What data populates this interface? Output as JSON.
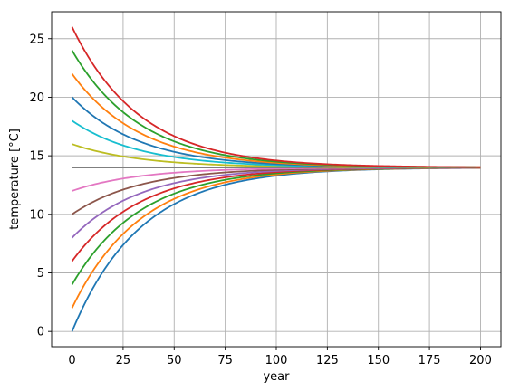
{
  "chart_data": {
    "type": "line",
    "title": "",
    "xlabel": "year",
    "ylabel": "temperature [°C]",
    "xlim": [
      -10,
      210
    ],
    "ylim": [
      -1.3,
      27.3
    ],
    "xticks": [
      0,
      25,
      50,
      75,
      100,
      125,
      150,
      175,
      200
    ],
    "yticks": [
      0,
      5,
      10,
      15,
      20,
      25
    ],
    "grid": true,
    "legend": "none",
    "model": {
      "equilibrium": 14,
      "decay_rate_per_year": 0.03
    },
    "x": [
      0,
      5,
      10,
      15,
      20,
      25,
      30,
      35,
      40,
      45,
      50,
      55,
      60,
      65,
      70,
      75,
      80,
      85,
      90,
      95,
      100,
      105,
      110,
      115,
      120,
      125,
      130,
      135,
      140,
      145,
      150,
      155,
      160,
      165,
      170,
      175,
      180,
      185,
      190,
      195,
      200
    ],
    "series": [
      {
        "initial": 0,
        "color": "#1f77b4"
      },
      {
        "initial": 2,
        "color": "#ff7f0e"
      },
      {
        "initial": 4,
        "color": "#2ca02c"
      },
      {
        "initial": 6,
        "color": "#d62728"
      },
      {
        "initial": 8,
        "color": "#9467bd"
      },
      {
        "initial": 10,
        "color": "#8c564b"
      },
      {
        "initial": 12,
        "color": "#e377c2"
      },
      {
        "initial": 14,
        "color": "#7f7f7f"
      },
      {
        "initial": 16,
        "color": "#bcbd22"
      },
      {
        "initial": 18,
        "color": "#17becf"
      },
      {
        "initial": 20,
        "color": "#1f77b4"
      },
      {
        "initial": 22,
        "color": "#ff7f0e"
      },
      {
        "initial": 24,
        "color": "#2ca02c"
      },
      {
        "initial": 26,
        "color": "#d62728"
      }
    ]
  }
}
